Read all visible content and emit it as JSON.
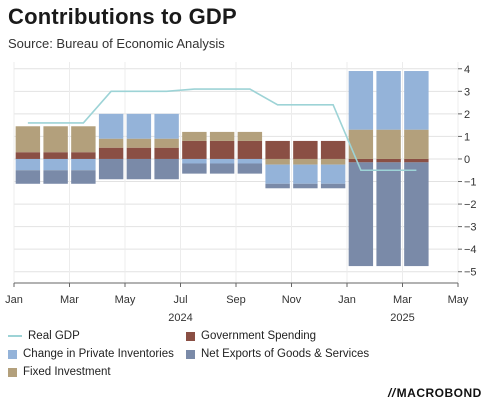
{
  "header": {
    "title": "Contributions to GDP",
    "subtitle": "Source: Bureau of Economic Analysis"
  },
  "brand": {
    "logo_text": "MACROBOND",
    "logo_mark": "//"
  },
  "chart_data": {
    "type": "bar",
    "stacked": true,
    "title": "Contributions to GDP",
    "xlabel": "",
    "ylabel": "",
    "ylim": [
      -5.5,
      4.3
    ],
    "y_ticks": [
      4,
      3,
      2,
      1,
      0,
      -1,
      -2,
      -3,
      -4,
      -5
    ],
    "y_axis_side": "right",
    "grid": true,
    "legend_placement": "bottom",
    "x_ticks": [
      "Jan",
      "Mar",
      "May",
      "Jul",
      "Sep",
      "Nov",
      "Jan",
      "Mar",
      "May"
    ],
    "x_years": [
      "2024",
      "2025"
    ],
    "months": [
      "Jan 2024",
      "Feb 2024",
      "Mar 2024",
      "Apr 2024",
      "May 2024",
      "Jun 2024",
      "Jul 2024",
      "Aug 2024",
      "Sep 2024",
      "Oct 2024",
      "Nov 2024",
      "Dec 2024",
      "Jan 2025",
      "Feb 2025",
      "Mar 2025"
    ],
    "series": [
      {
        "name": "Government Spending",
        "color": "#8a4f44",
        "values": [
          0.3,
          0.3,
          0.3,
          0.5,
          0.5,
          0.5,
          0.8,
          0.8,
          0.8,
          0.8,
          0.8,
          0.8,
          -0.15,
          -0.15,
          -0.15
        ]
      },
      {
        "name": "Fixed Investment",
        "color": "#b3a07c",
        "values": [
          1.15,
          1.15,
          1.15,
          0.4,
          0.4,
          0.4,
          0.4,
          0.4,
          0.4,
          -0.25,
          -0.25,
          -0.25,
          1.3,
          1.3,
          1.3
        ]
      },
      {
        "name": "Change in Private Inventories",
        "color": "#94b3d9",
        "values": [
          -0.5,
          -0.5,
          -0.5,
          1.1,
          1.1,
          1.1,
          -0.2,
          -0.2,
          -0.2,
          -0.85,
          -0.85,
          -0.85,
          2.6,
          2.6,
          2.6
        ]
      },
      {
        "name": "Net Exports of Goods & Services",
        "color": "#7a8aa8",
        "values": [
          -0.6,
          -0.6,
          -0.6,
          -0.9,
          -0.9,
          -0.9,
          -0.45,
          -0.45,
          -0.45,
          -0.2,
          -0.2,
          -0.2,
          -4.6,
          -4.6,
          -4.6
        ]
      },
      {
        "name": "Real GDP",
        "type": "line",
        "color": "#9dd3d6",
        "values": [
          1.6,
          1.6,
          1.6,
          3.0,
          3.0,
          3.0,
          3.1,
          3.1,
          3.1,
          2.4,
          2.4,
          2.4,
          -0.5,
          -0.5,
          -0.5
        ]
      }
    ],
    "legend": [
      {
        "label": "Real GDP",
        "kind": "line",
        "color": "#9dd3d6"
      },
      {
        "label": "Government Spending",
        "kind": "box",
        "color": "#8a4f44"
      },
      {
        "label": "Change in Private Inventories",
        "kind": "box",
        "color": "#94b3d9"
      },
      {
        "label": "Net Exports of Goods & Services",
        "kind": "box",
        "color": "#7a8aa8"
      },
      {
        "label": "Fixed Investment",
        "kind": "box",
        "color": "#b3a07c"
      }
    ]
  }
}
